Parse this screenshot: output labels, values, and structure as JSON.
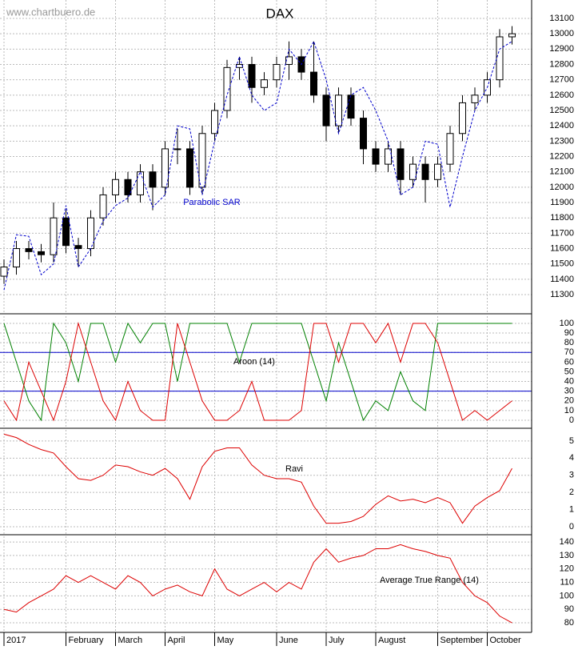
{
  "chart_data": [
    {
      "type": "candlestick",
      "title": "DAX",
      "watermark": "www.chartbuero.de",
      "open": [
        11420,
        11480,
        11600,
        11580,
        11560,
        11800,
        11620,
        11600,
        11800,
        11950,
        12050,
        11950,
        12100,
        12000,
        12250,
        12250,
        12000,
        12350,
        12500,
        12780,
        12800,
        12650,
        12700,
        12800,
        12850,
        12750,
        12600,
        12400,
        12600,
        12450,
        12250,
        12150,
        12250,
        12050,
        12150,
        12050,
        12150,
        12350,
        12550,
        12600,
        12700,
        12980
      ],
      "high": [
        11530,
        11650,
        11650,
        11630,
        11900,
        11850,
        11670,
        11850,
        12000,
        12100,
        12100,
        12150,
        12150,
        12300,
        12380,
        12300,
        12400,
        12550,
        12830,
        12850,
        12850,
        12750,
        12850,
        12950,
        12900,
        12950,
        12650,
        12650,
        12650,
        12500,
        12300,
        12300,
        12300,
        12200,
        12200,
        12200,
        12400,
        12600,
        12650,
        12750,
        13030,
        13050
      ],
      "low": [
        11370,
        11430,
        11530,
        11510,
        11510,
        11570,
        11480,
        11550,
        11750,
        11900,
        11900,
        11900,
        11850,
        11950,
        12150,
        11950,
        11950,
        12300,
        12450,
        12700,
        12550,
        12600,
        12650,
        12700,
        12700,
        12550,
        12300,
        12350,
        12400,
        12150,
        12100,
        12100,
        11950,
        12000,
        11900,
        12000,
        12100,
        12300,
        12500,
        12550,
        12650,
        12930
      ],
      "close": [
        11480,
        11600,
        11580,
        11560,
        11800,
        11620,
        11600,
        11800,
        11950,
        12050,
        11950,
        12100,
        12000,
        12250,
        12250,
        12000,
        12350,
        12500,
        12780,
        12800,
        12650,
        12700,
        12800,
        12850,
        12750,
        12600,
        12400,
        12600,
        12450,
        12250,
        12150,
        12250,
        12050,
        12150,
        12050,
        12150,
        12350,
        12550,
        12600,
        12700,
        12980,
        13000
      ],
      "up_color": "#ffffff",
      "down_color": "#000000",
      "series": [
        {
          "name": "Parabolic SAR",
          "color": "#0000cc",
          "values": [
            11330,
            11690,
            11680,
            11430,
            11500,
            11880,
            11480,
            11600,
            11780,
            11880,
            11930,
            12100,
            11870,
            11950,
            12400,
            12380,
            11950,
            12300,
            12600,
            12850,
            12600,
            12500,
            12550,
            12900,
            12800,
            12950,
            12700,
            12350,
            12600,
            12650,
            12500,
            12300,
            11950,
            12000,
            12300,
            12280,
            11870,
            12200,
            12500,
            12650,
            12900,
            12950
          ]
        }
      ],
      "ylim": [
        11175,
        13220
      ],
      "yticks": [
        11300,
        11400,
        11500,
        11600,
        11700,
        11800,
        11900,
        12000,
        12100,
        12200,
        12300,
        12400,
        12500,
        12600,
        12700,
        12800,
        12900,
        13000,
        13100
      ],
      "grid": true
    },
    {
      "type": "line",
      "title": "Aroon (14)",
      "series": [
        {
          "color": "#008000",
          "values": [
            100,
            60,
            20,
            0,
            100,
            80,
            40,
            100,
            100,
            60,
            100,
            80,
            100,
            100,
            40,
            100,
            100,
            100,
            100,
            60,
            100,
            100,
            100,
            100,
            100,
            60,
            20,
            80,
            40,
            0,
            20,
            10,
            50,
            20,
            10,
            100,
            100,
            100,
            100,
            100,
            100,
            100
          ]
        },
        {
          "color": "#dd0000",
          "values": [
            20,
            0,
            60,
            30,
            0,
            40,
            100,
            60,
            20,
            0,
            40,
            10,
            0,
            0,
            100,
            60,
            20,
            0,
            0,
            10,
            40,
            0,
            0,
            0,
            10,
            100,
            100,
            60,
            100,
            100,
            80,
            100,
            60,
            100,
            100,
            80,
            40,
            0,
            10,
            0,
            10,
            20
          ]
        }
      ],
      "hlines": [
        70,
        30
      ],
      "hline_color": "#0000cc",
      "ylim": [
        -8.3,
        107.4
      ],
      "yticks": [
        0,
        10,
        20,
        30,
        40,
        50,
        60,
        70,
        80,
        90,
        100
      ],
      "grid": true
    },
    {
      "type": "line",
      "title": "Ravi",
      "series": [
        {
          "color": "#dd0000",
          "values": [
            5.4,
            5.2,
            4.8,
            4.5,
            4.3,
            3.5,
            2.8,
            2.7,
            3,
            3.6,
            3.5,
            3.2,
            3,
            3.4,
            2.8,
            1.6,
            3.5,
            4.4,
            4.6,
            4.6,
            3.6,
            3,
            2.8,
            2.8,
            2.6,
            1.2,
            0.2,
            0.2,
            0.3,
            0.6,
            1.3,
            1.8,
            1.5,
            1.6,
            1.4,
            1.7,
            1.4,
            0.2,
            1.2,
            1.7,
            2.1,
            3.4
          ]
        }
      ],
      "ylim": [
        -0.47,
        5.65
      ],
      "yticks": [
        0,
        1,
        2,
        3,
        4,
        5
      ],
      "grid": true
    },
    {
      "type": "line",
      "title": "Average True Range (14)",
      "categories": [
        "2017",
        null,
        null,
        null,
        null,
        "February",
        null,
        null,
        null,
        "March",
        null,
        null,
        null,
        "April",
        null,
        null,
        null,
        "May",
        null,
        null,
        null,
        null,
        "June",
        null,
        null,
        null,
        "July",
        null,
        null,
        null,
        "August",
        null,
        null,
        null,
        null,
        "September",
        null,
        null,
        null,
        "October",
        null,
        null
      ],
      "series": [
        {
          "color": "#dd0000",
          "values": [
            90,
            88,
            95,
            100,
            105,
            115,
            110,
            115,
            110,
            105,
            115,
            110,
            100,
            105,
            108,
            103,
            100,
            120,
            105,
            100,
            105,
            110,
            103,
            110,
            105,
            125,
            135,
            125,
            128,
            130,
            135,
            135,
            138,
            135,
            133,
            130,
            128,
            110,
            100,
            95,
            85,
            80
          ]
        }
      ],
      "ylim": [
        72.9,
        144.2
      ],
      "yticks": [
        80,
        90,
        100,
        110,
        120,
        130,
        140
      ],
      "grid": true
    }
  ]
}
